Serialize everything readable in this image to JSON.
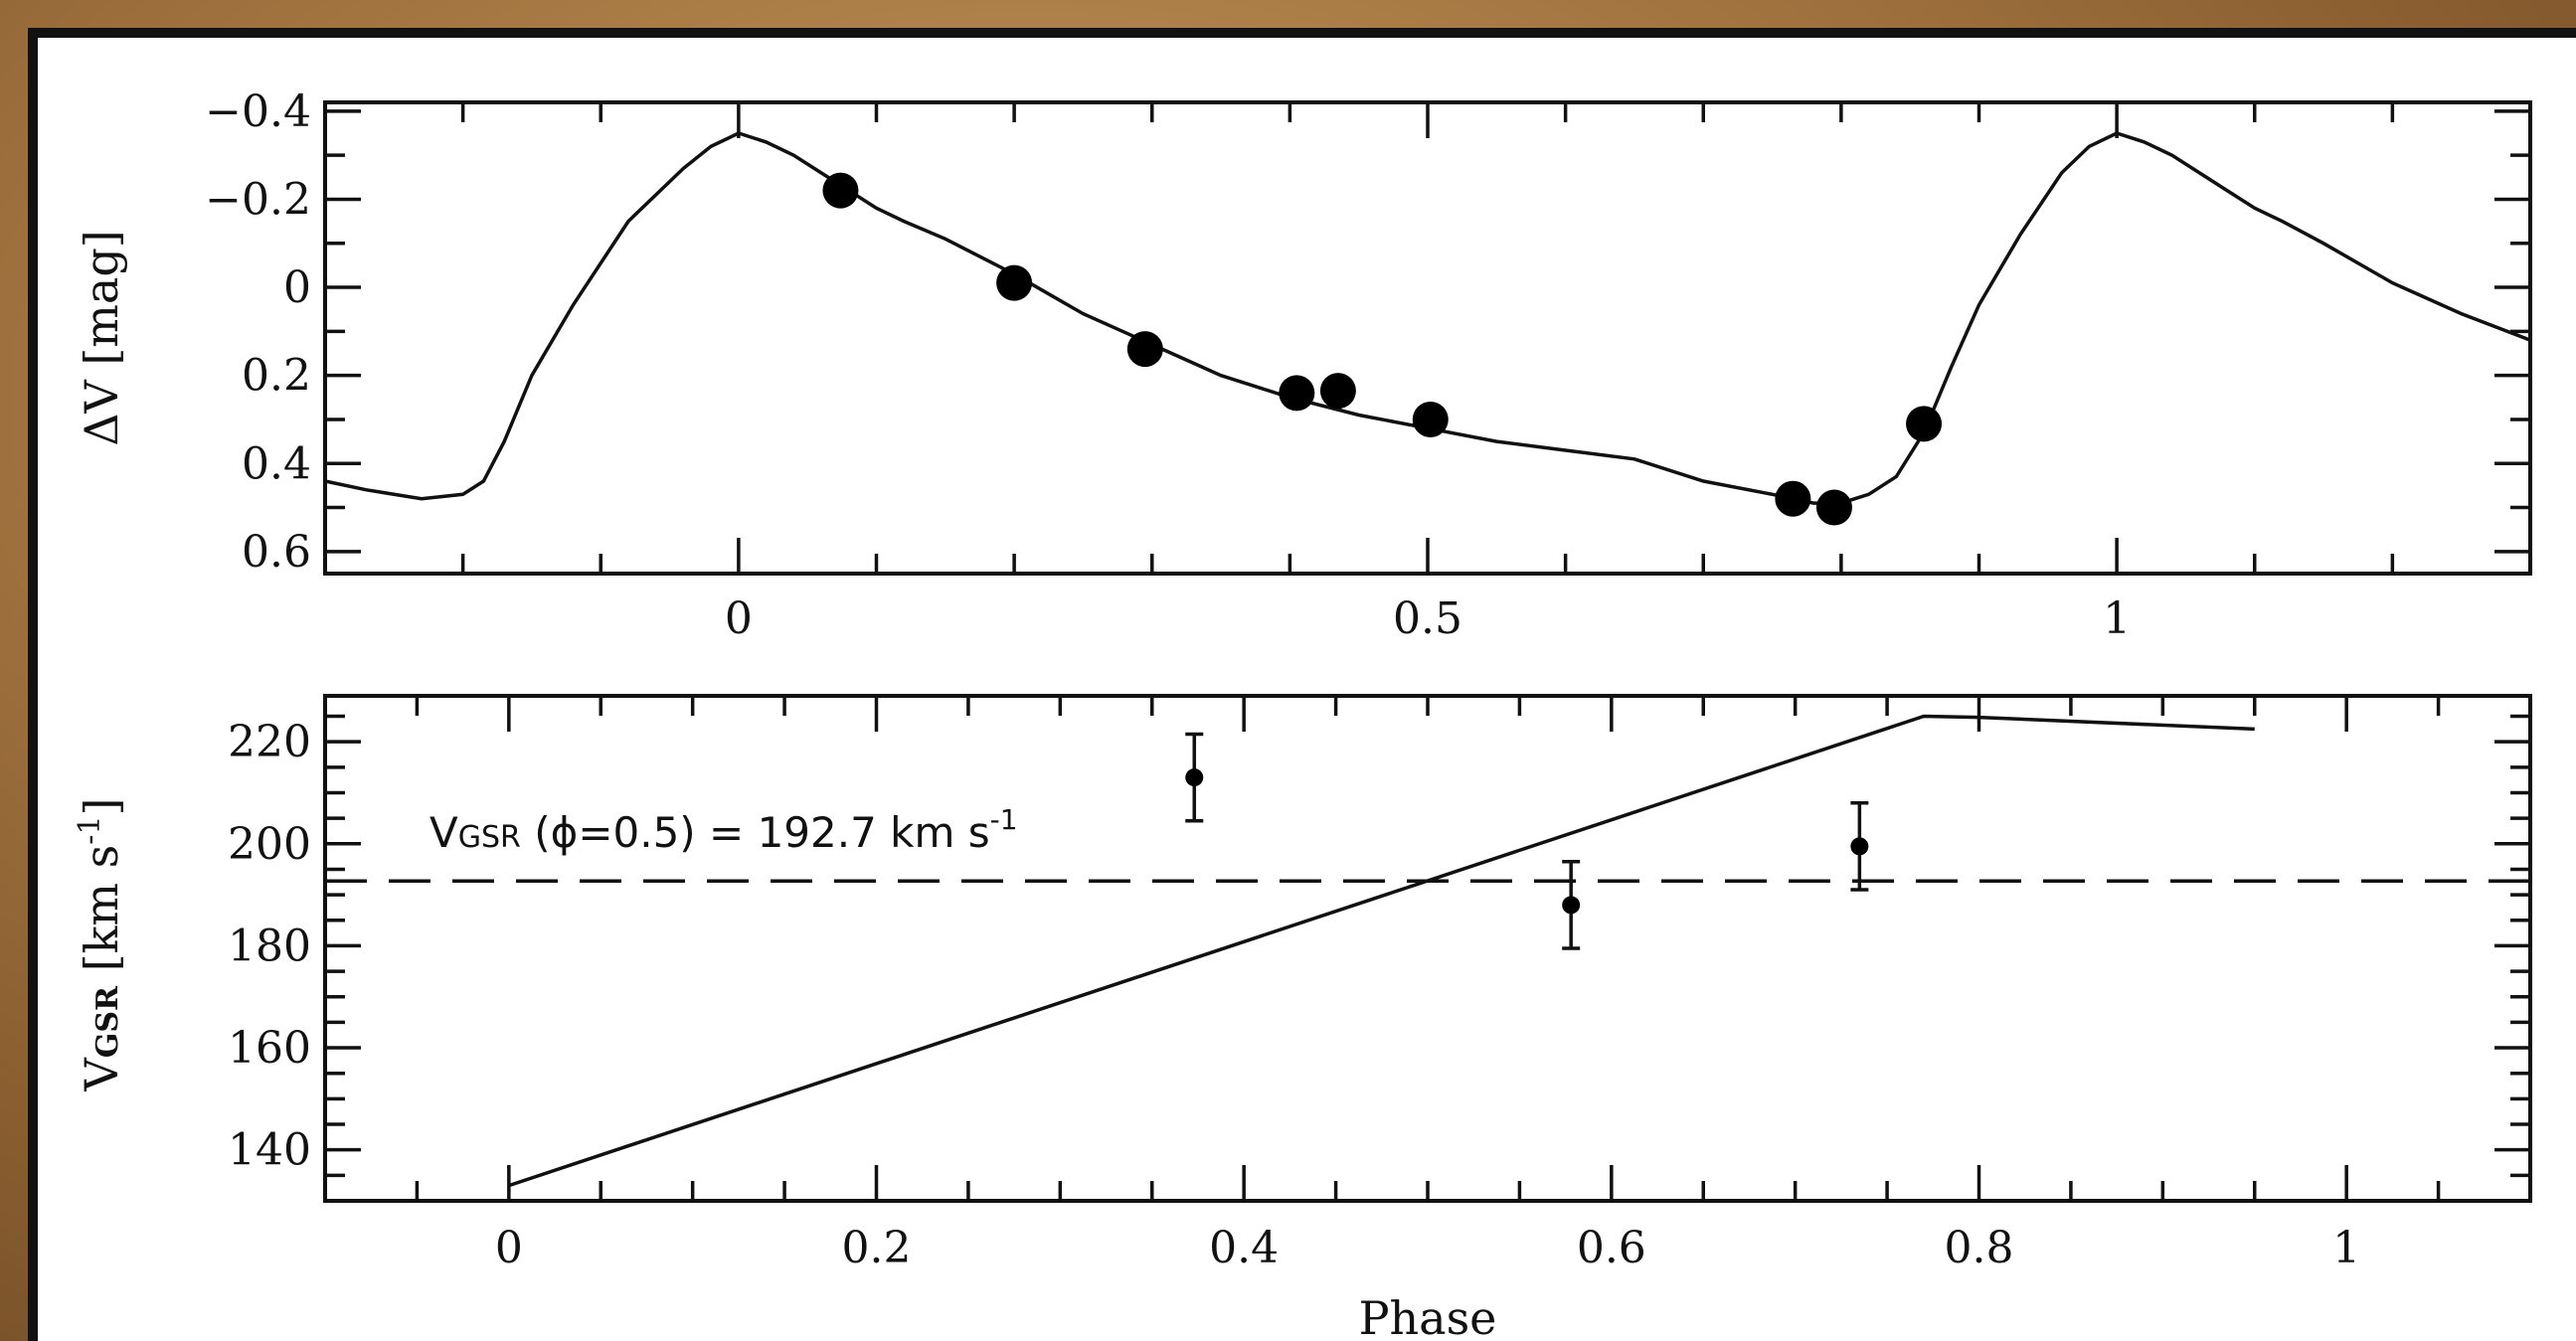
{
  "chart_data": [
    {
      "type": "line",
      "panel": "top",
      "xlabel": "",
      "ylabel": "ΔV [mag]",
      "xlim": [
        -0.3,
        1.3
      ],
      "ylim": [
        0.65,
        -0.42
      ],
      "y_inverted": true,
      "xticks": [
        0,
        0.5,
        1
      ],
      "xtick_labels": [
        "0",
        "0.5",
        "1"
      ],
      "yticks": [
        -0.4,
        -0.2,
        0,
        0.2,
        0.4,
        0.6
      ],
      "ytick_labels": [
        "−0.4",
        "−0.2",
        "0",
        "0.2",
        "0.4",
        "0.6"
      ],
      "curve": {
        "x": [
          -0.3,
          -0.27,
          -0.23,
          -0.2,
          -0.185,
          -0.17,
          -0.15,
          -0.12,
          -0.08,
          -0.04,
          -0.02,
          0.0,
          0.02,
          0.04,
          0.06,
          0.08,
          0.1,
          0.12,
          0.15,
          0.2,
          0.25,
          0.3,
          0.35,
          0.4,
          0.45,
          0.5,
          0.55,
          0.6,
          0.65,
          0.7,
          0.75,
          0.78,
          0.8,
          0.82,
          0.84,
          0.86,
          0.88,
          0.9,
          0.93,
          0.96,
          0.98,
          1.0,
          1.02,
          1.04,
          1.06,
          1.08,
          1.1,
          1.12,
          1.15,
          1.2,
          1.25,
          1.3
        ],
        "y": [
          0.44,
          0.46,
          0.48,
          0.47,
          0.44,
          0.35,
          0.2,
          0.04,
          -0.15,
          -0.27,
          -0.32,
          -0.35,
          -0.33,
          -0.3,
          -0.26,
          -0.22,
          -0.18,
          -0.15,
          -0.11,
          -0.03,
          0.06,
          0.13,
          0.2,
          0.25,
          0.29,
          0.32,
          0.35,
          0.37,
          0.39,
          0.44,
          0.47,
          0.49,
          0.49,
          0.47,
          0.43,
          0.33,
          0.18,
          0.04,
          -0.12,
          -0.26,
          -0.32,
          -0.35,
          -0.33,
          -0.3,
          -0.26,
          -0.22,
          -0.18,
          -0.15,
          -0.1,
          -0.01,
          0.06,
          0.12
        ]
      },
      "points": {
        "x": [
          0.074,
          0.2,
          0.295,
          0.405,
          0.435,
          0.502,
          0.765,
          0.795,
          0.86
        ],
        "y": [
          -0.22,
          -0.01,
          0.14,
          0.24,
          0.235,
          0.3,
          0.48,
          0.5,
          0.31
        ]
      }
    },
    {
      "type": "line",
      "panel": "bottom",
      "xlabel": "Phase",
      "ylabel": "V_GSR [km s^-1]",
      "ylabel_parts": {
        "main": "V",
        "sub": "GSR",
        "rest": " [km s",
        "sup": "-1",
        "close": "]"
      },
      "xlim": [
        -0.1,
        1.1
      ],
      "ylim": [
        130,
        229
      ],
      "xticks": [
        0,
        0.2,
        0.4,
        0.6,
        0.8,
        1
      ],
      "xtick_labels": [
        "0",
        "0.2",
        "0.4",
        "0.6",
        "0.8",
        "1"
      ],
      "yticks": [
        140,
        160,
        180,
        200,
        220
      ],
      "ytick_labels": [
        "140",
        "160",
        "180",
        "200",
        "220"
      ],
      "curve": {
        "x": [
          0.0,
          0.77,
          0.8,
          0.95
        ],
        "y": [
          133,
          225,
          224.8,
          222.5
        ]
      },
      "points": {
        "x": [
          0.373,
          0.578,
          0.735
        ],
        "y": [
          213,
          188,
          199.5
        ],
        "err": [
          8.5,
          8.5,
          8.5
        ]
      },
      "hline": {
        "y": 192.7,
        "style": "dashed"
      },
      "annotation": {
        "V": "V",
        "sub": "GSR",
        "mid": " (ϕ=0.5) = 192.7 km s",
        "sup": "-1"
      }
    }
  ]
}
